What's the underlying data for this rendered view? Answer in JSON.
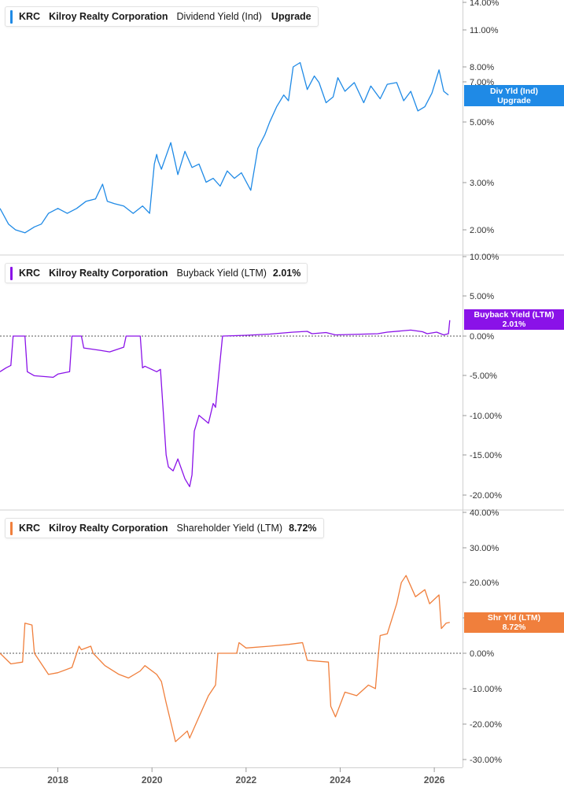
{
  "colors": {
    "dividend": "#1f8ae6",
    "buyback": "#8a12e8",
    "shareholder": "#f07f3c",
    "axis_text": "#333333",
    "grid_divider": "#d0d0d0"
  },
  "x_axis": {
    "ticks": [
      "2018",
      "2020",
      "2022",
      "2024",
      "2026"
    ],
    "range": [
      2016.77,
      2026.6
    ]
  },
  "panels": [
    {
      "id": "dividend",
      "legend": {
        "ticker": "KRC",
        "company": "Kilroy Realty Corporation",
        "metric": "Dividend Yield (Ind)",
        "value": "Upgrade"
      },
      "tag": {
        "line1": "Div Yld (Ind)",
        "line2": "Upgrade"
      }
    },
    {
      "id": "buyback",
      "legend": {
        "ticker": "KRC",
        "company": "Kilroy Realty Corporation",
        "metric": "Buyback Yield (LTM)",
        "value": "2.01%"
      },
      "tag": {
        "line1": "Buyback Yield (LTM)",
        "line2": "2.01%"
      }
    },
    {
      "id": "shareholder",
      "legend": {
        "ticker": "KRC",
        "company": "Kilroy Realty Corporation",
        "metric": "Shareholder Yield (LTM)",
        "value": "8.72%"
      },
      "tag": {
        "line1": "Shr Yld (LTM)",
        "line2": "8.72%"
      }
    }
  ],
  "chart_data": [
    {
      "type": "line",
      "series": [
        {
          "name": "Dividend Yield (Ind)",
          "x": [
            2016.77,
            2016.95,
            2017.1,
            2017.3,
            2017.5,
            2017.65,
            2017.8,
            2018.0,
            2018.2,
            2018.4,
            2018.6,
            2018.8,
            2018.95,
            2019.05,
            2019.2,
            2019.4,
            2019.6,
            2019.8,
            2019.95,
            2020.05,
            2020.1,
            2020.13,
            2020.2,
            2020.4,
            2020.55,
            2020.7,
            2020.85,
            2021.0,
            2021.15,
            2021.3,
            2021.45,
            2021.6,
            2021.75,
            2021.9,
            2022.1,
            2022.25,
            2022.4,
            2022.5,
            2022.65,
            2022.8,
            2022.9,
            2023.0,
            2023.15,
            2023.3,
            2023.45,
            2023.55,
            2023.7,
            2023.85,
            2023.95,
            2024.1,
            2024.3,
            2024.5,
            2024.65,
            2024.85,
            2025.0,
            2025.2,
            2025.35,
            2025.5,
            2025.65,
            2025.8,
            2025.95,
            2026.1,
            2026.2,
            2026.3
          ],
          "values": [
            2.4,
            2.1,
            2.0,
            1.95,
            2.05,
            2.1,
            2.3,
            2.4,
            2.3,
            2.4,
            2.55,
            2.6,
            2.95,
            2.55,
            2.5,
            2.45,
            2.3,
            2.45,
            2.3,
            3.5,
            3.8,
            3.6,
            3.35,
            4.2,
            3.2,
            3.9,
            3.4,
            3.5,
            3.0,
            3.1,
            2.9,
            3.3,
            3.1,
            3.25,
            2.8,
            4.0,
            4.5,
            5.0,
            5.7,
            6.3,
            6.0,
            8.0,
            8.3,
            6.6,
            7.4,
            7.0,
            5.9,
            6.2,
            7.3,
            6.5,
            7.0,
            5.9,
            6.8,
            6.1,
            6.9,
            7.0,
            6.0,
            6.5,
            5.5,
            5.7,
            6.4,
            7.8,
            6.5,
            6.3
          ]
        }
      ],
      "y_ticks": [
        "2.00%",
        "3.00%",
        "5.00%",
        "7.00%",
        "8.00%",
        "11.00%",
        "14.00%"
      ],
      "y_scale": "log",
      "ylim": [
        1.68,
        14.0
      ]
    },
    {
      "type": "line",
      "series": [
        {
          "name": "Buyback Yield (LTM)",
          "x": [
            2016.77,
            2016.9,
            2017.0,
            2017.05,
            2017.3,
            2017.35,
            2017.5,
            2017.9,
            2018.0,
            2018.25,
            2018.3,
            2018.5,
            2018.55,
            2018.9,
            2019.1,
            2019.4,
            2019.45,
            2019.75,
            2019.8,
            2019.85,
            2020.1,
            2020.18,
            2020.2,
            2020.3,
            2020.35,
            2020.45,
            2020.55,
            2020.7,
            2020.8,
            2020.85,
            2020.9,
            2021.0,
            2021.2,
            2021.3,
            2021.35,
            2021.5,
            2022.0,
            2022.5,
            2023.0,
            2023.3,
            2023.4,
            2023.7,
            2023.9,
            2024.5,
            2024.8,
            2025.0,
            2025.5,
            2025.75,
            2025.85,
            2026.05,
            2026.2,
            2026.3,
            2026.33
          ],
          "values": [
            -4.5,
            -4.0,
            -3.7,
            0.0,
            0.0,
            -4.5,
            -5.0,
            -5.2,
            -4.8,
            -4.5,
            0.0,
            0.0,
            -1.5,
            -1.8,
            -2.0,
            -1.4,
            0.0,
            0.0,
            -4.0,
            -3.8,
            -4.5,
            -4.2,
            -6.0,
            -15.0,
            -16.5,
            -17.0,
            -15.5,
            -18.0,
            -19.0,
            -17.5,
            -12.0,
            -10.0,
            -11.0,
            -8.5,
            -9.0,
            0.0,
            0.1,
            0.25,
            0.5,
            0.6,
            0.3,
            0.45,
            0.15,
            0.25,
            0.3,
            0.5,
            0.75,
            0.55,
            0.3,
            0.5,
            0.15,
            0.3,
            2.01
          ]
        }
      ],
      "y_ticks": [
        "-20.00%",
        "-15.00%",
        "-10.00%",
        "-5.00%",
        "0.00%",
        "5.00%",
        "10.00%"
      ],
      "ylim": [
        -20.0,
        10.0
      ]
    },
    {
      "type": "line",
      "series": [
        {
          "name": "Shareholder Yield (LTM)",
          "x": [
            2016.77,
            2017.0,
            2017.25,
            2017.3,
            2017.45,
            2017.5,
            2017.8,
            2018.0,
            2018.3,
            2018.45,
            2018.5,
            2018.7,
            2018.75,
            2019.0,
            2019.3,
            2019.5,
            2019.75,
            2019.85,
            2020.1,
            2020.2,
            2020.3,
            2020.5,
            2020.75,
            2020.8,
            2021.0,
            2021.2,
            2021.35,
            2021.4,
            2021.8,
            2021.85,
            2022.0,
            2022.5,
            2022.9,
            2023.2,
            2023.3,
            2023.75,
            2023.8,
            2023.9,
            2024.1,
            2024.35,
            2024.6,
            2024.75,
            2024.8,
            2024.85,
            2025.0,
            2025.2,
            2025.3,
            2025.4,
            2025.6,
            2025.8,
            2025.9,
            2026.1,
            2026.15,
            2026.25,
            2026.33
          ],
          "values": [
            0.0,
            -3.0,
            -2.5,
            8.5,
            8.0,
            0.0,
            -6.0,
            -5.5,
            -4.0,
            2.0,
            1.0,
            2.0,
            0.0,
            -3.5,
            -6.0,
            -7.0,
            -5.0,
            -3.5,
            -6.0,
            -8.0,
            -14.0,
            -25.0,
            -22.0,
            -24.0,
            -18.0,
            -12.0,
            -9.0,
            0.0,
            0.0,
            3.0,
            1.5,
            2.0,
            2.5,
            3.0,
            -2.0,
            -2.5,
            -15.0,
            -18.0,
            -11.0,
            -12.0,
            -9.0,
            -10.0,
            -2.0,
            5.0,
            5.5,
            14.0,
            20.0,
            22.0,
            16.0,
            18.0,
            14.0,
            16.5,
            7.0,
            8.5,
            8.72
          ]
        }
      ],
      "y_ticks": [
        "-30.00%",
        "-20.00%",
        "-10.00%",
        "0.00%",
        "10.00%",
        "20.00%",
        "30.00%",
        "40.00%"
      ],
      "ylim": [
        -30.0,
        40.0
      ]
    }
  ]
}
